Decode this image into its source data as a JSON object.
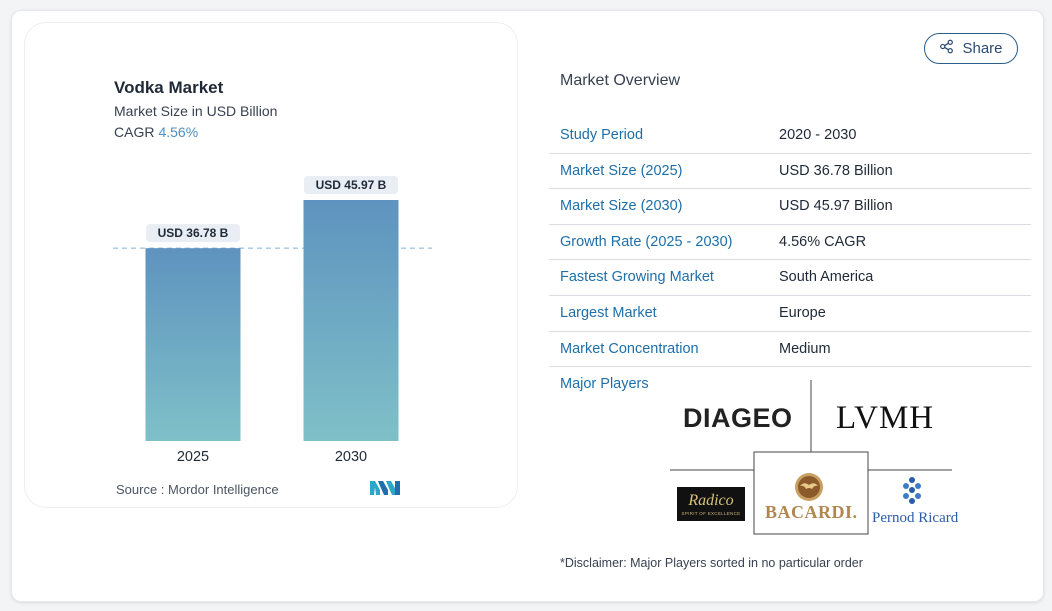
{
  "header": {
    "share_label": "Share"
  },
  "chart_card": {
    "title": "Vodka Market",
    "subtitle": "Market Size in USD Billion",
    "cagr_label": "CAGR",
    "cagr_value": "4.56%",
    "source": "Source :  Mordor Intelligence"
  },
  "chart_data": {
    "type": "bar",
    "categories": [
      "2025",
      "2030"
    ],
    "values": [
      36.78,
      45.97
    ],
    "value_labels": [
      "USD 36.78 B",
      "USD 45.97 B"
    ],
    "title": "Vodka Market",
    "ylabel": "Market Size in USD Billion",
    "grid": false,
    "reference_line": "dashed at 2025 value",
    "colors": {
      "bar_top": "#5e93bf",
      "bar_bottom": "#7fc0c8",
      "label_bg": "#e8eef3",
      "dash": "#7fb1d9"
    }
  },
  "overview": {
    "title": "Market Overview",
    "rows": [
      {
        "label": "Study Period",
        "value": "2020 - 2030"
      },
      {
        "label": "Market Size (2025)",
        "value": "USD 36.78 Billion"
      },
      {
        "label": "Market Size (2030)",
        "value": "USD 45.97 Billion"
      },
      {
        "label": "Growth Rate (2025 - 2030)",
        "value": "4.56% CAGR"
      },
      {
        "label": "Fastest Growing Market",
        "value": "South America"
      },
      {
        "label": "Largest Market",
        "value": "Europe"
      },
      {
        "label": "Market Concentration",
        "value": "Medium"
      }
    ],
    "players_label": "Major Players",
    "players": {
      "diageo": "DIAGEO",
      "lvmh": "LVMH",
      "radico": "Radico",
      "radico_tagline": "SPIRIT OF EXCELLENCE",
      "bacardi": "BACARDI.",
      "pernod": "Pernod Ricard"
    },
    "disclaimer": "*Disclaimer: Major Players sorted in no particular order"
  },
  "colors": {
    "accent": "#1e6fa8",
    "share_border": "#2b5f8a"
  }
}
